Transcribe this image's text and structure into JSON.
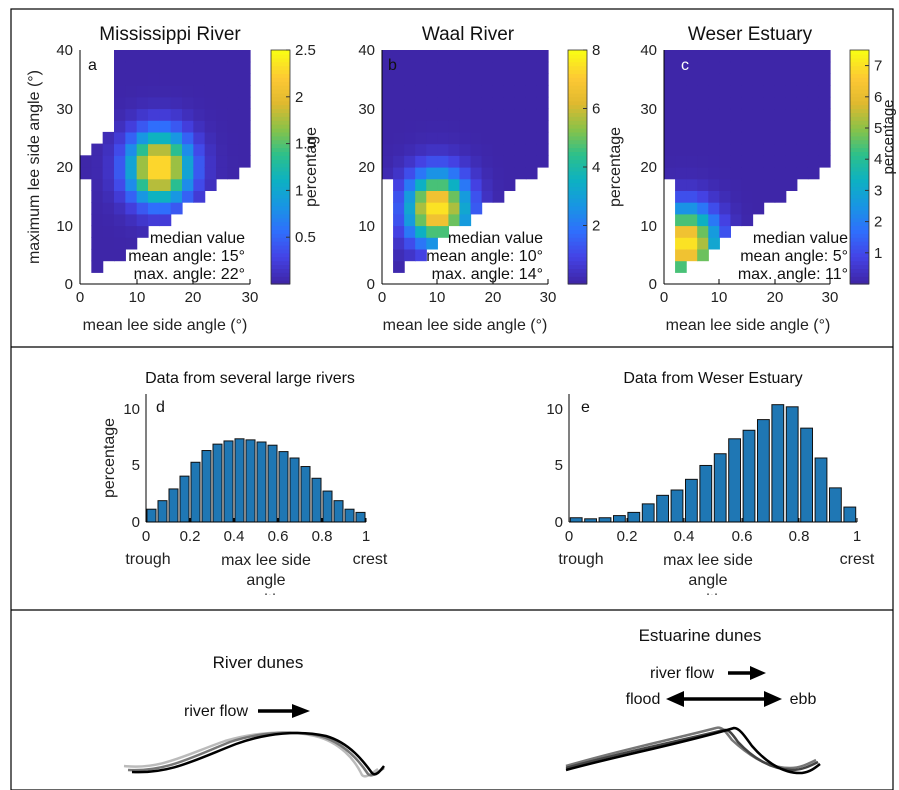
{
  "colors": {
    "bar_fill": "#1f77b4",
    "colormap": [
      "#3e26a8",
      "#4443e6",
      "#2f6ffc",
      "#1896e3",
      "#0db1c2",
      "#2dc08a",
      "#8ac248",
      "#e0b92f",
      "#fdc934",
      "#f9fb15"
    ],
    "dune_black": "#000000",
    "dune_grey": "#777777",
    "dune_light": "#bbbbbb"
  },
  "chart_data": [
    {
      "type": "heatmap",
      "letter": "a",
      "title": "Mississippi River",
      "xlabel": "mean lee side angle (°)",
      "ylabel": "maximum lee side angle (°)",
      "xlim": [
        0,
        30
      ],
      "ylim": [
        0,
        40
      ],
      "xticks": [
        "0",
        "10",
        "20",
        "30"
      ],
      "yticks": [
        "0",
        "10",
        "20",
        "30",
        "40"
      ],
      "colorbar_label": "percentage",
      "colorbar_range": [
        0,
        2.5
      ],
      "colorbar_ticks": [
        "0.5",
        "1",
        "1.5",
        "2",
        "2.5"
      ],
      "annotation": [
        "median value",
        "mean angle: 15°",
        "max. angle: 22°"
      ],
      "bin_size": 2,
      "peak": {
        "x": 14,
        "y": 20,
        "value": 2.5
      }
    },
    {
      "type": "heatmap",
      "letter": "b",
      "title": "Waal River",
      "xlabel": "mean lee side angle (°)",
      "ylabel": "",
      "xlim": [
        0,
        30
      ],
      "ylim": [
        0,
        40
      ],
      "xticks": [
        "0",
        "10",
        "20",
        "30"
      ],
      "yticks": [
        "0",
        "10",
        "20",
        "30",
        "40"
      ],
      "colorbar_label": "percentage",
      "colorbar_range": [
        0,
        8
      ],
      "colorbar_ticks": [
        "2",
        "4",
        "6",
        "8"
      ],
      "annotation": [
        "median value",
        "mean angle: 10°",
        "max. angle: 14°"
      ],
      "bin_size": 2,
      "peak": {
        "x": 10,
        "y": 13,
        "value": 8
      }
    },
    {
      "type": "heatmap",
      "letter": "c",
      "title": "Weser Estuary",
      "xlabel": "mean lee side angle (°)",
      "ylabel": "",
      "xlim": [
        0,
        30
      ],
      "ylim": [
        0,
        40
      ],
      "xticks": [
        "0",
        "10",
        "20",
        "30"
      ],
      "yticks": [
        "0",
        "10",
        "20",
        "30",
        "40"
      ],
      "colorbar_label": "percentage",
      "colorbar_range": [
        0,
        7.5
      ],
      "colorbar_ticks": [
        "1",
        "2",
        "3",
        "4",
        "5",
        "6",
        "7"
      ],
      "annotation": [
        "median value",
        "mean angle: 5°",
        "max. angle: 11°"
      ],
      "bin_size": 2,
      "peak": {
        "x": 4,
        "y": 7,
        "value": 7.3
      }
    },
    {
      "type": "bar",
      "letter": "d",
      "title": "Data from several large rivers",
      "xlabel": "max lee side angle position",
      "ylabel": "percentage",
      "xlim": [
        0,
        1
      ],
      "ylim": [
        0,
        12
      ],
      "xticks": [
        "0",
        "0.2",
        "0.4",
        "0.6",
        "0.8",
        "1"
      ],
      "yticks": [
        "0",
        "5",
        "10"
      ],
      "x_end_labels": [
        "trough",
        "crest"
      ],
      "x": [
        0.025,
        0.075,
        0.125,
        0.175,
        0.225,
        0.275,
        0.325,
        0.375,
        0.425,
        0.475,
        0.525,
        0.575,
        0.625,
        0.675,
        0.725,
        0.775,
        0.825,
        0.875,
        0.925,
        0.975
      ],
      "values": [
        1.2,
        2.0,
        3.1,
        4.3,
        5.6,
        6.7,
        7.3,
        7.6,
        7.8,
        7.7,
        7.5,
        7.2,
        6.6,
        6.0,
        5.2,
        4.1,
        2.9,
        2.0,
        1.2,
        0.9
      ]
    },
    {
      "type": "bar",
      "letter": "e",
      "title": "Data from Weser Estuary",
      "xlabel": "max lee side angle position",
      "ylabel": "",
      "xlim": [
        0,
        1
      ],
      "ylim": [
        0,
        12
      ],
      "xticks": [
        "0",
        "0.2",
        "0.4",
        "0.6",
        "0.8",
        "1"
      ],
      "yticks": [
        "0",
        "5",
        "10"
      ],
      "x_end_labels": [
        "trough",
        "crest"
      ],
      "x": [
        0.025,
        0.075,
        0.125,
        0.175,
        0.225,
        0.275,
        0.325,
        0.375,
        0.425,
        0.475,
        0.525,
        0.575,
        0.625,
        0.675,
        0.725,
        0.775,
        0.825,
        0.875,
        0.925,
        0.975
      ],
      "values": [
        0.4,
        0.3,
        0.4,
        0.6,
        0.9,
        1.7,
        2.5,
        3.0,
        4.0,
        5.3,
        6.4,
        7.8,
        8.6,
        9.6,
        11.0,
        10.8,
        8.8,
        6.0,
        3.2,
        1.4
      ]
    }
  ],
  "dunes": {
    "river": {
      "title": "River dunes",
      "flow_label": "river flow"
    },
    "estuarine": {
      "title": "Estuarine dunes",
      "flow_label": "river flow",
      "flood_label": "flood",
      "ebb_label": "ebb"
    }
  }
}
